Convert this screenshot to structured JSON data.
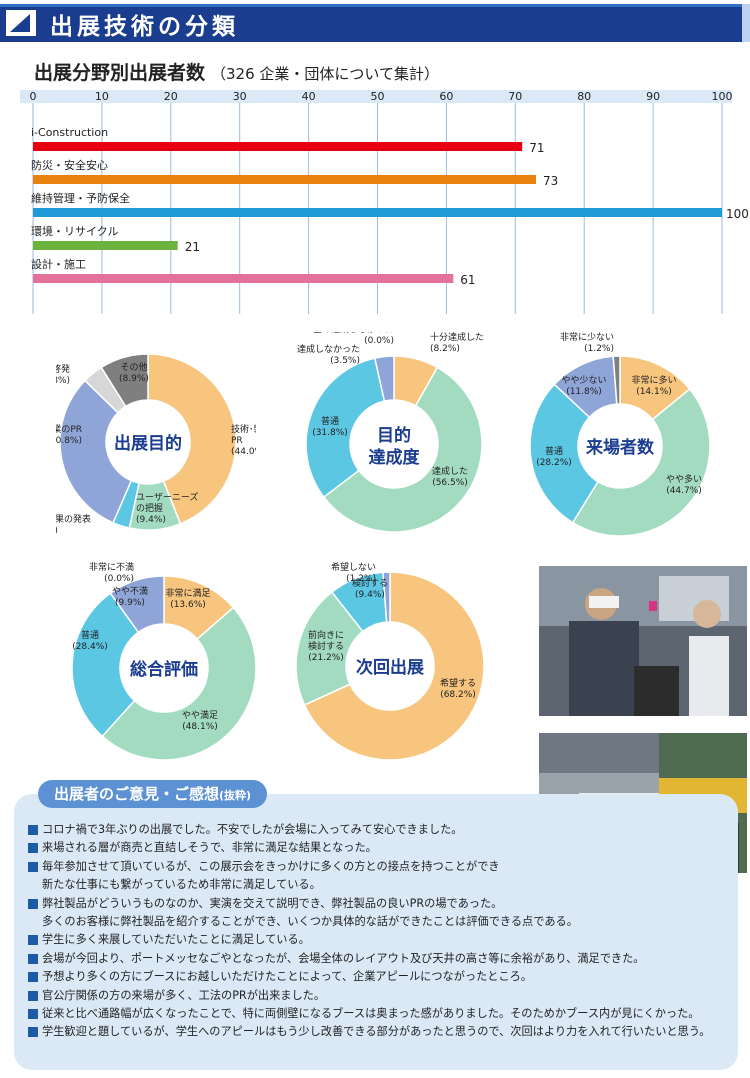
{
  "section_title": "出展技術の分類",
  "colors": {
    "navy": "#1b3d8f",
    "blue": "#2e6fc4",
    "light_blue": "#dbe9f7"
  },
  "bar_chart_heading": "出展分野別出展者数",
  "bar_chart_subheading": "（326 企業・団体について集計）",
  "chart_data": [
    {
      "type": "bar",
      "orientation": "horizontal",
      "title": "出展分野別出展者数",
      "subtitle": "（326 企業・団体について集計）",
      "xlim": [
        0,
        100
      ],
      "ticks": [
        0,
        10,
        20,
        30,
        40,
        50,
        60,
        70,
        80,
        90,
        100
      ],
      "grid": true,
      "categories": [
        "i-Construction",
        "防災・安全安心",
        "維持管理・予防保全",
        "環境・リサイクル",
        "設計・施工"
      ],
      "values": [
        71,
        73,
        100,
        21,
        61
      ],
      "colors": [
        "#e60012",
        "#e8820c",
        "#1e9ad6",
        "#6cb33e",
        "#e4709c"
      ]
    },
    {
      "type": "pie",
      "center_label": "出展目的",
      "slices": [
        {
          "label": "技術･製品の\nPR",
          "value": 44.0,
          "display": "(44.0%)",
          "color": "#f8c57e"
        },
        {
          "label": "ユーザーニーズ\nの把握",
          "value": 9.4,
          "display": "(9.4%)",
          "color": "#a3dbc1"
        },
        {
          "label": "技術成果の発表",
          "value": 3.1,
          "display": "(3.1%)",
          "color": "#5bc7e3"
        },
        {
          "label": "企業のPR",
          "value": 30.8,
          "display": "(30.8%)",
          "color": "#8fa5d8"
        },
        {
          "label": "教育･啓発",
          "value": 3.8,
          "display": "(3.8%)",
          "color": "#d7d7d7"
        },
        {
          "label": "その他",
          "value": 8.9,
          "display": "(8.9%)",
          "color": "#7f7f7f"
        }
      ]
    },
    {
      "type": "pie",
      "center_label": "目的\n達成度",
      "slices": [
        {
          "label": "十分達成した",
          "value": 8.2,
          "display": "(8.2%)",
          "color": "#f8c57e"
        },
        {
          "label": "達成した",
          "value": 56.5,
          "display": "(56.5%)",
          "color": "#a3dbc1"
        },
        {
          "label": "普通",
          "value": 31.8,
          "display": "(31.8%)",
          "color": "#5bc7e3"
        },
        {
          "label": "達成しなかった",
          "value": 3.5,
          "display": "(3.5%)",
          "color": "#8fa5d8"
        },
        {
          "label": "全く達成しなかった",
          "value": 0.0,
          "display": "(0.0%)",
          "color": "#7f7f7f"
        }
      ]
    },
    {
      "type": "pie",
      "center_label": "来場者数",
      "slices": [
        {
          "label": "非常に多い",
          "value": 14.1,
          "display": "(14.1%)",
          "color": "#f8c57e"
        },
        {
          "label": "やや多い",
          "value": 44.7,
          "display": "(44.7%)",
          "color": "#a3dbc1"
        },
        {
          "label": "普通",
          "value": 28.2,
          "display": "(28.2%)",
          "color": "#5bc7e3"
        },
        {
          "label": "やや少ない",
          "value": 11.8,
          "display": "(11.8%)",
          "color": "#8fa5d8"
        },
        {
          "label": "非常に少ない",
          "value": 1.2,
          "display": "(1.2%)",
          "color": "#7f7f7f"
        }
      ]
    },
    {
      "type": "pie",
      "center_label": "総合評価",
      "slices": [
        {
          "label": "非常に満足",
          "value": 13.6,
          "display": "(13.6%)",
          "color": "#f8c57e"
        },
        {
          "label": "やや満足",
          "value": 48.1,
          "display": "(48.1%)",
          "color": "#a3dbc1"
        },
        {
          "label": "普通",
          "value": 28.4,
          "display": "(28.4%)",
          "color": "#5bc7e3"
        },
        {
          "label": "やや不満",
          "value": 9.9,
          "display": "(9.9%)",
          "color": "#8fa5d8"
        },
        {
          "label": "非常に不満",
          "value": 0.0,
          "display": "(0.0%)",
          "color": "#7f7f7f"
        }
      ]
    },
    {
      "type": "pie",
      "center_label": "次回出展",
      "slices": [
        {
          "label": "希望する",
          "value": 68.2,
          "display": "(68.2%)",
          "color": "#f8c57e"
        },
        {
          "label": "前向きに\n検討する",
          "value": 21.2,
          "display": "(21.2%)",
          "color": "#a3dbc1"
        },
        {
          "label": "検討する",
          "value": 9.4,
          "display": "(9.4%)",
          "color": "#5bc7e3"
        },
        {
          "label": "希望しない",
          "value": 1.2,
          "display": "(1.2%)",
          "color": "#8fa5d8"
        }
      ]
    }
  ],
  "photos": [
    {
      "description": "展示会場で VR ゴーグルを体験する来場者と説明員",
      "icon": "photo-icon"
    },
    {
      "description": "展示ブースの機械展示",
      "icon": "photo-icon"
    }
  ],
  "comments_title": "出展者のご意見・ご感想",
  "comments_title_note": "(抜粋)",
  "comments": [
    "コロナ禍で3年ぶりの出展でした。不安でしたが会場に入ってみて安心できました。",
    "来場される層が商売と直結しそうで、非常に満足な結果となった。",
    "毎年参加させて頂いているが、この展示会をきっかけに多くの方との接点を持つことができ\n新たな仕事にも繋がっているため非常に満足している。",
    "弊社製品がどういうものなのか、実演を交えて説明でき、弊社製品の良いPRの場であった。\n多くのお客様に弊社製品を紹介することができ、いくつか具体的な話ができたことは評価できる点である。",
    "学生に多く来展していただいたことに満足している。",
    "会場が今回より、ポートメッセなごやとなったが、会場全体のレイアウト及び天井の高さ等に余裕があり、満足できた。",
    "予想より多くの方にブースにお越しいただけたことによって、企業アピールにつながったところ。",
    "官公庁関係の方の来場が多く、工法のPRが出来ました。",
    "従来と比べ通路幅が広くなったことで、特に両側壁になるブースは奥まった感がありました。そのためかブース内が見にくかった。",
    "学生歓迎と題しているが、学生へのアピールはもう少し改善できる部分があったと思うので、次回はより力を入れて行いたいと思う。"
  ]
}
